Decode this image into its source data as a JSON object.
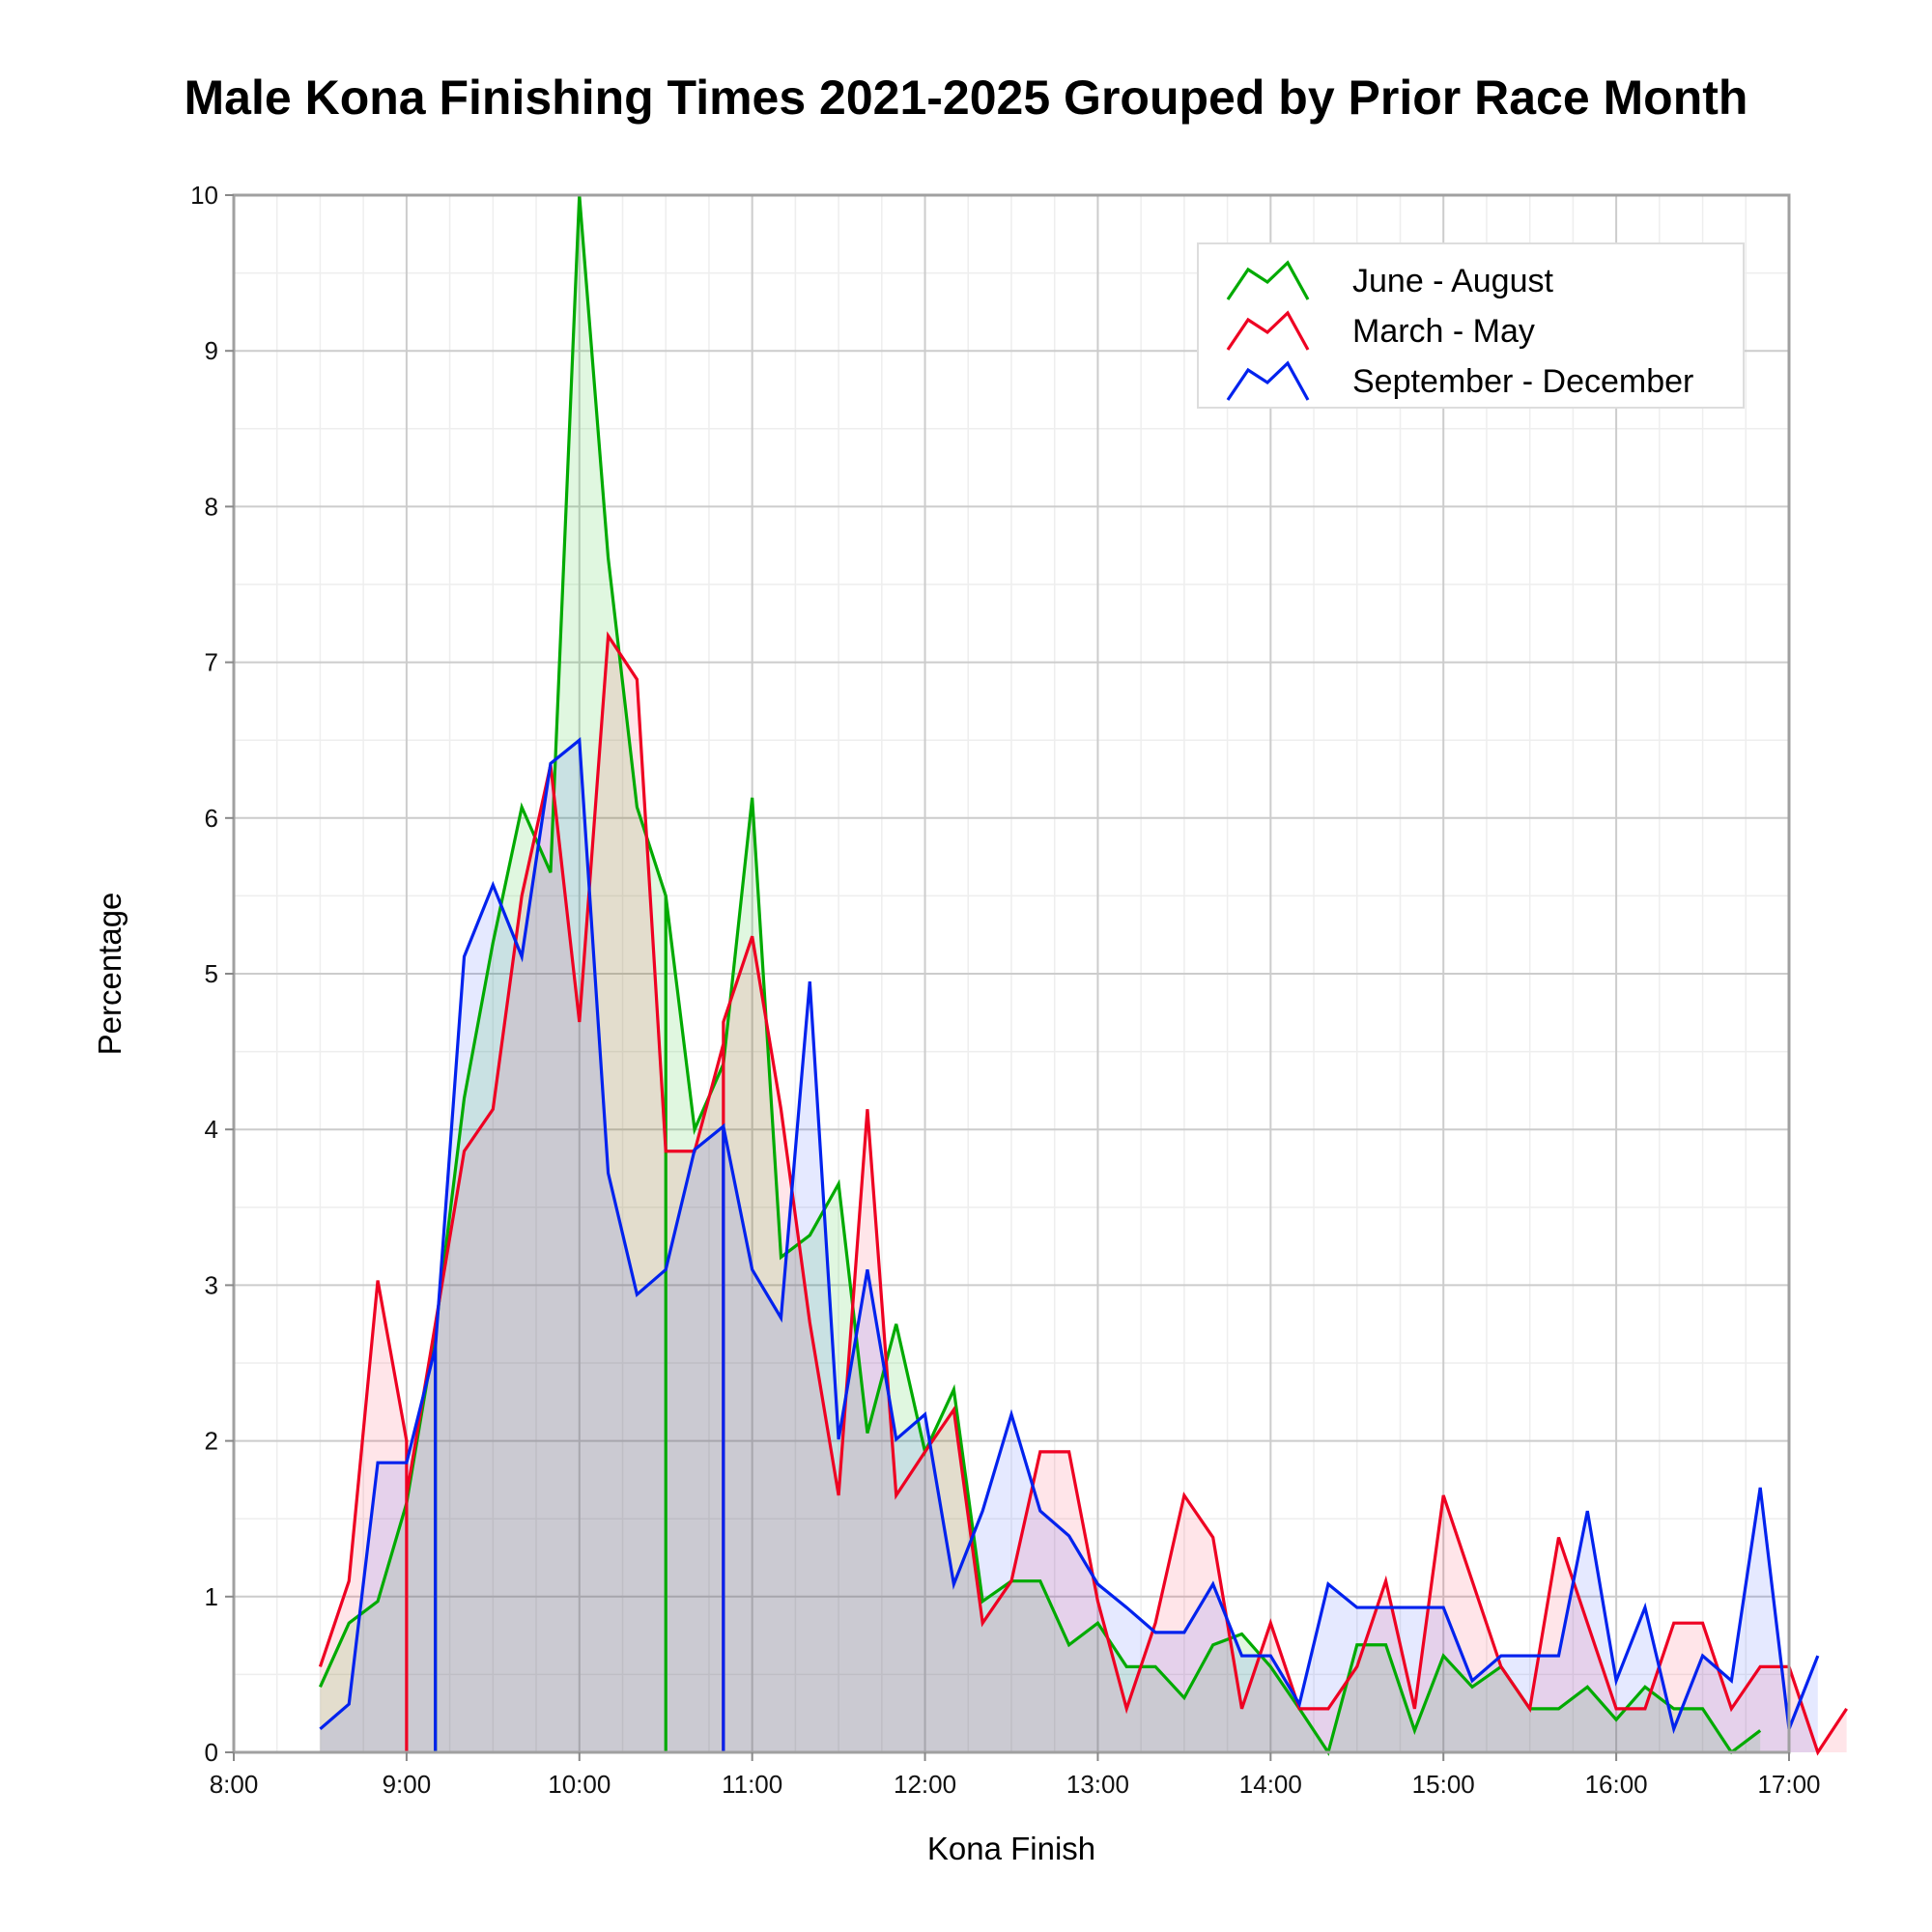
{
  "chart_data": {
    "type": "area",
    "title": "Male Kona Finishing Times 2021-2025 Grouped by Prior Race Month",
    "xlabel": "Kona Finish",
    "ylabel": "Percentage",
    "xlim": [
      "8:00",
      "17:00"
    ],
    "ylim": [
      0,
      10
    ],
    "x_ticks": [
      "8:00",
      "9:00",
      "10:00",
      "11:00",
      "12:00",
      "13:00",
      "14:00",
      "15:00",
      "16:00",
      "17:00"
    ],
    "y_ticks": [
      "0",
      "1",
      "2",
      "3",
      "4",
      "5",
      "6",
      "7",
      "8",
      "9",
      "10"
    ],
    "grid": true,
    "legend_position": "top-right",
    "series": [
      {
        "name": "June - August",
        "color": "#00aa00",
        "points": [
          [
            "8:30",
            0.42
          ],
          [
            "8:40",
            0.83
          ],
          [
            "8:50",
            0.97
          ],
          [
            "9:00",
            1.6
          ],
          [
            "9:10",
            2.7
          ],
          [
            "9:10",
            0
          ],
          [
            "9:10",
            2.7
          ],
          [
            "9:20",
            4.2
          ],
          [
            "9:30",
            5.2
          ],
          [
            "9:40",
            6.07
          ],
          [
            "9:50",
            5.65
          ],
          [
            "10:00",
            10.0
          ],
          [
            "10:10",
            7.67
          ],
          [
            "10:20",
            6.07
          ],
          [
            "10:30",
            5.5
          ],
          [
            "10:30",
            0
          ],
          [
            "10:30",
            5.5
          ],
          [
            "10:40",
            4.0
          ],
          [
            "10:50",
            4.42
          ],
          [
            "11:00",
            6.13
          ],
          [
            "11:10",
            3.18
          ],
          [
            "11:20",
            3.32
          ],
          [
            "11:30",
            3.65
          ],
          [
            "11:40",
            2.05
          ],
          [
            "11:50",
            2.75
          ],
          [
            "12:00",
            1.93
          ],
          [
            "12:10",
            2.33
          ],
          [
            "12:20",
            0.97
          ],
          [
            "12:30",
            1.1
          ],
          [
            "12:40",
            1.1
          ],
          [
            "12:50",
            0.69
          ],
          [
            "13:00",
            0.83
          ],
          [
            "13:10",
            0.55
          ],
          [
            "13:20",
            0.55
          ],
          [
            "13:30",
            0.35
          ],
          [
            "13:40",
            0.69
          ],
          [
            "13:50",
            0.76
          ],
          [
            "14:00",
            0.55
          ],
          [
            "14:10",
            0.28
          ],
          [
            "14:20",
            0.0
          ],
          [
            "14:30",
            0.69
          ],
          [
            "14:40",
            0.69
          ],
          [
            "14:50",
            0.14
          ],
          [
            "15:00",
            0.62
          ],
          [
            "15:10",
            0.42
          ],
          [
            "15:20",
            0.55
          ],
          [
            "15:30",
            0.28
          ],
          [
            "15:40",
            0.28
          ],
          [
            "15:50",
            0.42
          ],
          [
            "16:00",
            0.21
          ],
          [
            "16:10",
            0.42
          ],
          [
            "16:20",
            0.28
          ],
          [
            "16:30",
            0.28
          ],
          [
            "16:40",
            0.0
          ],
          [
            "16:50",
            0.14
          ]
        ]
      },
      {
        "name": "March - May",
        "color": "#ee0022",
        "points": [
          [
            "8:30",
            0.55
          ],
          [
            "8:40",
            1.1
          ],
          [
            "8:50",
            3.03
          ],
          [
            "9:00",
            2.0
          ],
          [
            "9:00",
            0
          ],
          [
            "9:00",
            1.65
          ],
          [
            "9:10",
            2.75
          ],
          [
            "9:20",
            3.86
          ],
          [
            "9:30",
            4.13
          ],
          [
            "9:40",
            5.5
          ],
          [
            "9:50",
            6.34
          ],
          [
            "10:00",
            4.69
          ],
          [
            "10:10",
            7.17
          ],
          [
            "10:20",
            6.89
          ],
          [
            "10:30",
            3.86
          ],
          [
            "10:40",
            3.86
          ],
          [
            "10:50",
            4.55
          ],
          [
            "10:50",
            0
          ],
          [
            "10:50",
            4.69
          ],
          [
            "11:00",
            5.24
          ],
          [
            "11:10",
            4.13
          ],
          [
            "11:20",
            2.76
          ],
          [
            "11:30",
            1.65
          ],
          [
            "11:40",
            4.13
          ],
          [
            "11:50",
            1.65
          ],
          [
            "12:00",
            1.93
          ],
          [
            "12:10",
            2.2
          ],
          [
            "12:20",
            0.83
          ],
          [
            "12:30",
            1.1
          ],
          [
            "12:40",
            1.93
          ],
          [
            "12:50",
            1.93
          ],
          [
            "13:00",
            0.97
          ],
          [
            "13:10",
            0.28
          ],
          [
            "13:20",
            0.83
          ],
          [
            "13:30",
            1.65
          ],
          [
            "13:40",
            1.38
          ],
          [
            "13:50",
            0.28
          ],
          [
            "14:00",
            0.83
          ],
          [
            "14:10",
            0.28
          ],
          [
            "14:20",
            0.28
          ],
          [
            "14:30",
            0.55
          ],
          [
            "14:40",
            1.1
          ],
          [
            "14:50",
            0.28
          ],
          [
            "15:00",
            1.65
          ],
          [
            "15:10",
            1.1
          ],
          [
            "15:20",
            0.55
          ],
          [
            "15:30",
            0.28
          ],
          [
            "15:40",
            1.38
          ],
          [
            "15:50",
            0.83
          ],
          [
            "16:00",
            0.28
          ],
          [
            "16:10",
            0.28
          ],
          [
            "16:20",
            0.83
          ],
          [
            "16:30",
            0.83
          ],
          [
            "16:40",
            0.28
          ],
          [
            "16:50",
            0.55
          ],
          [
            "17:00",
            0.55
          ],
          [
            "17:10",
            0.0
          ],
          [
            "17:20",
            0.28
          ]
        ]
      },
      {
        "name": "September - December",
        "color": "#0022ee",
        "points": [
          [
            "8:30",
            0.15
          ],
          [
            "8:40",
            0.31
          ],
          [
            "8:50",
            1.86
          ],
          [
            "9:00",
            1.86
          ],
          [
            "9:10",
            2.6
          ],
          [
            "9:10",
            0
          ],
          [
            "9:10",
            2.6
          ],
          [
            "9:20",
            5.11
          ],
          [
            "9:30",
            5.57
          ],
          [
            "9:40",
            5.11
          ],
          [
            "9:50",
            6.35
          ],
          [
            "10:00",
            6.5
          ],
          [
            "10:10",
            3.72
          ],
          [
            "10:20",
            2.94
          ],
          [
            "10:30",
            3.1
          ],
          [
            "10:40",
            3.87
          ],
          [
            "10:50",
            4.02
          ],
          [
            "10:50",
            0
          ],
          [
            "10:50",
            4.02
          ],
          [
            "11:00",
            3.1
          ],
          [
            "11:10",
            2.79
          ],
          [
            "11:20",
            4.95
          ],
          [
            "11:30",
            2.01
          ],
          [
            "11:40",
            3.1
          ],
          [
            "11:50",
            2.01
          ],
          [
            "12:00",
            2.17
          ],
          [
            "12:10",
            1.08
          ],
          [
            "12:20",
            1.55
          ],
          [
            "12:30",
            2.17
          ],
          [
            "12:40",
            1.55
          ],
          [
            "12:50",
            1.39
          ],
          [
            "13:00",
            1.08
          ],
          [
            "13:10",
            0.93
          ],
          [
            "13:20",
            0.77
          ],
          [
            "13:30",
            0.77
          ],
          [
            "13:40",
            1.08
          ],
          [
            "13:50",
            0.62
          ],
          [
            "14:00",
            0.62
          ],
          [
            "14:10",
            0.31
          ],
          [
            "14:20",
            1.08
          ],
          [
            "14:30",
            0.93
          ],
          [
            "14:40",
            0.93
          ],
          [
            "14:50",
            0.93
          ],
          [
            "15:00",
            0.93
          ],
          [
            "15:10",
            0.46
          ],
          [
            "15:20",
            0.62
          ],
          [
            "15:30",
            0.62
          ],
          [
            "15:40",
            0.62
          ],
          [
            "15:50",
            1.55
          ],
          [
            "16:00",
            0.46
          ],
          [
            "16:10",
            0.93
          ],
          [
            "16:20",
            0.15
          ],
          [
            "16:30",
            0.62
          ],
          [
            "16:40",
            0.46
          ],
          [
            "16:50",
            1.7
          ],
          [
            "17:00",
            0.15
          ],
          [
            "17:10",
            0.62
          ]
        ]
      }
    ]
  }
}
